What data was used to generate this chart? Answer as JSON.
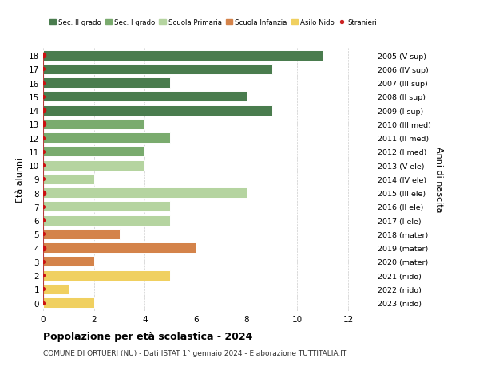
{
  "ages": [
    18,
    17,
    16,
    15,
    14,
    13,
    12,
    11,
    10,
    9,
    8,
    7,
    6,
    5,
    4,
    3,
    2,
    1,
    0
  ],
  "years_labels": [
    "2005 (V sup)",
    "2006 (IV sup)",
    "2007 (III sup)",
    "2008 (II sup)",
    "2009 (I sup)",
    "2010 (III med)",
    "2011 (II med)",
    "2012 (I med)",
    "2013 (V ele)",
    "2014 (IV ele)",
    "2015 (III ele)",
    "2016 (II ele)",
    "2017 (I ele)",
    "2018 (mater)",
    "2019 (mater)",
    "2020 (mater)",
    "2021 (nido)",
    "2022 (nido)",
    "2023 (nido)"
  ],
  "bar_values": [
    11,
    9,
    5,
    8,
    9,
    4,
    5,
    4,
    4,
    2,
    8,
    5,
    5,
    3,
    6,
    2,
    5,
    1,
    2
  ],
  "bar_colors": [
    "#4a7c4e",
    "#4a7c4e",
    "#4a7c4e",
    "#4a7c4e",
    "#4a7c4e",
    "#7aab6e",
    "#7aab6e",
    "#7aab6e",
    "#b5d4a0",
    "#b5d4a0",
    "#b5d4a0",
    "#b5d4a0",
    "#b5d4a0",
    "#d4834a",
    "#d4834a",
    "#d4834a",
    "#f0d060",
    "#f0d060",
    "#f0d060"
  ],
  "stranieri_values": [
    1,
    0,
    0,
    0,
    1,
    1,
    0,
    0,
    0,
    0,
    1,
    0,
    0,
    0,
    1,
    0,
    0,
    0,
    0
  ],
  "legend_labels": [
    "Sec. II grado",
    "Sec. I grado",
    "Scuola Primaria",
    "Scuola Infanzia",
    "Asilo Nido",
    "Stranieri"
  ],
  "legend_colors": [
    "#4a7c4e",
    "#7aab6e",
    "#b5d4a0",
    "#d4834a",
    "#f0d060",
    "#cc2222"
  ],
  "title": "Popolazione per età scolastica - 2024",
  "subtitle": "COMUNE DI ORTUERI (NU) - Dati ISTAT 1° gennaio 2024 - Elaborazione TUTTITALIA.IT",
  "ylabel_left": "Età alunni",
  "ylabel_right": "Anni di nascita",
  "xlim": [
    0,
    13
  ],
  "bg_color": "#ffffff",
  "grid_color": "#cccccc"
}
